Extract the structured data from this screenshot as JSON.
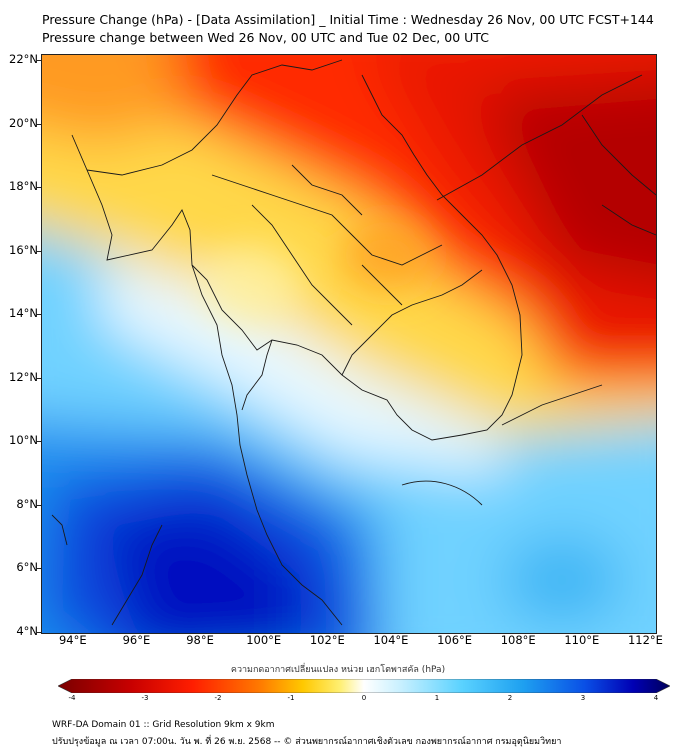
{
  "header": {
    "title_line1": "Pressure Change (hPa) - [Data Assimilation] _ Initial Time : Wednesday 26 Nov, 00 UTC FCST+144",
    "title_line2": "Pressure change between Wed 26 Nov, 00 UTC and Tue 02 Dec, 00 UTC"
  },
  "map": {
    "lat_labels": [
      "22°N",
      "20°N",
      "18°N",
      "16°N",
      "14°N",
      "12°N",
      "10°N",
      "8°N",
      "6°N",
      "4°N"
    ],
    "lon_labels": [
      "94°E",
      "96°E",
      "98°E",
      "100°E",
      "102°E",
      "104°E",
      "106°E",
      "108°E",
      "110°E",
      "112°E"
    ],
    "lat_range": [
      4,
      22.2
    ],
    "lon_range": [
      93,
      112.3
    ],
    "region_shown": "Mainland Southeast Asia (Myanmar, Thailand, Laos, Cambodia, Vietnam, Malay Peninsula)"
  },
  "colorbar": {
    "title": "ความกดอากาศเปลี่ยนแปลง หน่วย เฮกโตพาสคัล (hPa)",
    "tick_labels": [
      "-4",
      "-3",
      "-2",
      "-1",
      "0",
      "1",
      "2",
      "3",
      "4"
    ],
    "range": [
      -4,
      4
    ],
    "colors": [
      "#7a0000",
      "#c80000",
      "#ff1e00",
      "#ff7a00",
      "#ffc800",
      "#ffef70",
      "#ffffff",
      "#c8f0ff",
      "#5ad2ff",
      "#1ea0f0",
      "#0a50e6",
      "#0000b4",
      "#00005a"
    ]
  },
  "footer": {
    "line1": "WRF-DA Domain 01 :: Grid Resolution 9km x 9km",
    "line2": "ปรับปรุงข้อมูล ณ เวลา 07:00น. วัน พ. ที่ 26 พ.ย. 2568 -- © ส่วนพยากรณ์อากาศเชิงตัวเลข กองพยากรณ์อากาศ กรมอุตุนิยมวิทยา"
  }
}
